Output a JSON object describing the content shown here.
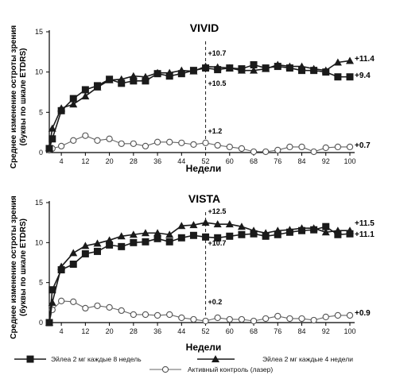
{
  "chart_data": [
    {
      "type": "line",
      "title": "VIVID",
      "xlabel": "Недели",
      "ylabel": [
        "Среднее изменение остроты зрения",
        "(буквы по шкале ETDRS)"
      ],
      "xlim": [
        0,
        100
      ],
      "ylim": [
        0,
        15
      ],
      "xticks": [
        4,
        12,
        20,
        28,
        36,
        44,
        52,
        60,
        68,
        76,
        84,
        92,
        100
      ],
      "yticks": [
        0,
        5,
        10,
        15
      ],
      "x": [
        0,
        1,
        4,
        8,
        12,
        16,
        20,
        24,
        28,
        32,
        36,
        40,
        44,
        48,
        52,
        56,
        60,
        64,
        68,
        72,
        76,
        80,
        84,
        88,
        92,
        96,
        100
      ],
      "series": [
        {
          "name": "Эйлеа 2 мг каждые 8 недель",
          "marker": "square",
          "values": [
            0.5,
            1.7,
            5.2,
            6.7,
            7.8,
            8.3,
            9.1,
            8.6,
            8.9,
            8.9,
            9.8,
            9.5,
            9.8,
            10.2,
            10.5,
            10.3,
            10.5,
            10.4,
            10.9,
            10.5,
            10.7,
            10.5,
            10.2,
            10.2,
            10.0,
            9.4,
            9.4
          ]
        },
        {
          "name": "Эйлеа 2 мг каждые 4 недели",
          "marker": "triangle",
          "values": [
            0.6,
            3.0,
            5.5,
            6.0,
            7.0,
            8.1,
            9.0,
            9.1,
            9.5,
            9.4,
            9.9,
            9.9,
            10.2,
            10.1,
            10.7,
            10.6,
            10.5,
            10.2,
            10.2,
            10.4,
            10.9,
            10.7,
            10.7,
            10.4,
            10.2,
            11.2,
            11.4
          ]
        },
        {
          "name": "Активный контроль (лазер)",
          "marker": "circle",
          "values": [
            0.3,
            0.5,
            0.8,
            1.5,
            2.1,
            1.5,
            1.7,
            1.1,
            1.1,
            0.8,
            1.3,
            1.3,
            1.2,
            1.0,
            1.2,
            0.9,
            0.7,
            0.5,
            0.1,
            0.1,
            0.3,
            0.7,
            0.7,
            0.1,
            0.6,
            0.7,
            0.7
          ]
        }
      ],
      "annotations": [
        {
          "text": "+10.7",
          "x": 52,
          "y": 12.8
        },
        {
          "text": "+10.5",
          "x": 52,
          "y": 8.9
        },
        {
          "text": "+1.2",
          "x": 52,
          "y": 2.4
        }
      ],
      "end_labels": [
        "+11.4",
        "+9.4",
        "+0.7"
      ],
      "reference_line_x": 52
    },
    {
      "type": "line",
      "title": "VISTA",
      "xlabel": "Недели",
      "ylabel": [
        "Среднее изменение остроты зрения",
        "(буквы по шкале ETDRS)"
      ],
      "xlim": [
        0,
        100
      ],
      "ylim": [
        0,
        15
      ],
      "xticks": [
        4,
        12,
        20,
        28,
        36,
        44,
        52,
        60,
        68,
        76,
        84,
        92,
        100
      ],
      "yticks": [
        0,
        5,
        10,
        15
      ],
      "x": [
        0,
        1,
        4,
        8,
        12,
        16,
        20,
        24,
        28,
        32,
        36,
        40,
        44,
        48,
        52,
        56,
        60,
        64,
        68,
        72,
        76,
        80,
        84,
        88,
        92,
        96,
        100
      ],
      "series": [
        {
          "name": "Эйлеа 2 мг каждые 8 недель",
          "marker": "square",
          "values": [
            0.0,
            4.1,
            6.6,
            7.3,
            8.6,
            8.9,
            9.7,
            9.5,
            10.0,
            10.1,
            10.5,
            10.1,
            10.6,
            10.9,
            10.7,
            10.6,
            10.8,
            11.0,
            11.1,
            10.8,
            11.0,
            11.3,
            11.5,
            11.6,
            12.0,
            11.0,
            11.1
          ]
        },
        {
          "name": "Эйлеа 2 мг каждые 4 недели",
          "marker": "triangle",
          "values": [
            0.0,
            2.5,
            7.0,
            8.7,
            9.6,
            9.9,
            10.3,
            10.8,
            11.0,
            11.2,
            11.2,
            11.0,
            12.1,
            12.2,
            12.5,
            12.3,
            12.3,
            12.0,
            11.5,
            11.2,
            11.5,
            11.6,
            11.8,
            11.8,
            11.3,
            11.5,
            11.5
          ]
        },
        {
          "name": "Активный контроль (лазер)",
          "marker": "circle",
          "values": [
            0.0,
            1.6,
            2.7,
            2.6,
            1.8,
            2.1,
            1.9,
            1.5,
            1.0,
            1.0,
            0.9,
            1.0,
            0.6,
            0.4,
            0.2,
            0.6,
            0.4,
            0.4,
            0.2,
            0.5,
            0.8,
            0.5,
            0.5,
            0.3,
            0.7,
            0.9,
            0.9
          ]
        }
      ],
      "annotations": [
        {
          "text": "+12.5",
          "x": 52,
          "y": 13.6
        },
        {
          "text": "+10.7",
          "x": 52,
          "y": 9.5
        },
        {
          "text": "+0.2",
          "x": 52,
          "y": 2.3
        }
      ],
      "end_labels": [
        "+11.5",
        "+11.1",
        "+0.9"
      ],
      "reference_line_x": 52
    }
  ],
  "legend": {
    "items": [
      {
        "label": "Эйлеа  2 мг каждые 8 недель",
        "marker": "square"
      },
      {
        "label": "Эйлеа  2 мг каждые 4 недели",
        "marker": "triangle"
      },
      {
        "label": "Активный контроль (лазер)",
        "marker": "circle"
      }
    ]
  }
}
